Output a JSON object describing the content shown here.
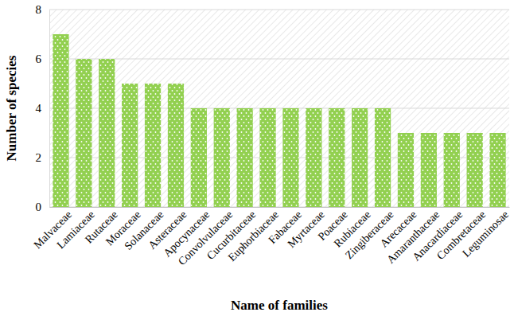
{
  "chart_data": {
    "type": "bar",
    "x_label": "Name of families",
    "y_label": "Number of species",
    "categories": [
      "Malvaceae",
      "Lamiaceae",
      "Rutaceae",
      "Moraceae",
      "Solanaceae",
      "Asteraceae",
      "Apocynaceae",
      "Convolvulaceae",
      "Cucurbitaceae",
      "Euphorbiaceae",
      "Fabaceae",
      "Myrtaceae",
      "Poaceae",
      "Rubiaceae",
      "Zingiberaceae",
      "Arecaceae",
      "Amaranthaceae",
      "Anacardiaceae",
      "Combretaceae",
      "Leguminosae"
    ],
    "values": [
      7,
      6,
      6,
      5,
      5,
      5,
      4,
      4,
      4,
      4,
      4,
      4,
      4,
      4,
      4,
      3,
      3,
      3,
      3,
      3
    ],
    "color": "#92d050",
    "ylim": [
      0,
      8
    ],
    "yticks": [
      0,
      2,
      4,
      6,
      8
    ],
    "grid": true
  }
}
